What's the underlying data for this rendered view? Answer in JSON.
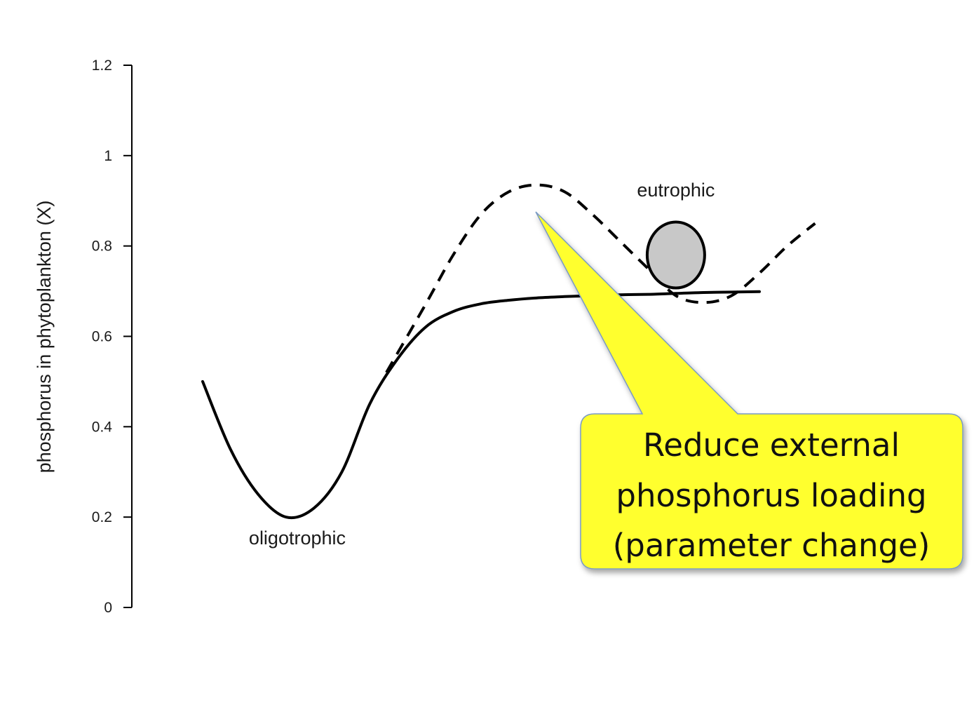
{
  "chart_data": {
    "type": "line",
    "title": "",
    "xlabel": "",
    "ylabel": "phosphorus in phytoplankton (X)",
    "ylim": [
      0,
      1.2
    ],
    "yticks": [
      {
        "value": 0,
        "label": "0"
      },
      {
        "value": 0.2,
        "label": "0.2"
      },
      {
        "value": 0.4,
        "label": "0.4"
      },
      {
        "value": 0.6,
        "label": "0.6"
      },
      {
        "value": 0.8,
        "label": "0.8"
      },
      {
        "value": 1.0,
        "label": "1"
      },
      {
        "value": 1.2,
        "label": "1.2"
      }
    ],
    "grid": false,
    "series": [
      {
        "style": "solid",
        "color": "#000000",
        "x": [
          0.0,
          0.05,
          0.1,
          0.15,
          0.2,
          0.25,
          0.3,
          0.35,
          0.4,
          0.45,
          0.5,
          0.55,
          0.6,
          0.65,
          0.7,
          0.75,
          0.8,
          0.85,
          0.9,
          0.95,
          1.0
        ],
        "y": [
          0.5,
          0.35,
          0.25,
          0.2,
          0.22,
          0.3,
          0.45,
          0.55,
          0.62,
          0.655,
          0.672,
          0.68,
          0.685,
          0.688,
          0.69,
          0.692,
          0.693,
          0.695,
          0.697,
          0.698,
          0.699
        ]
      },
      {
        "style": "dashed",
        "color": "#000000",
        "x": [
          0.33,
          0.4,
          0.45,
          0.5,
          0.55,
          0.6,
          0.65,
          0.7,
          0.75,
          0.8,
          0.85,
          0.9,
          0.95,
          1.0,
          1.05,
          1.1
        ],
        "y": [
          0.52,
          0.67,
          0.78,
          0.87,
          0.92,
          0.935,
          0.92,
          0.87,
          0.81,
          0.75,
          0.69,
          0.675,
          0.69,
          0.74,
          0.8,
          0.85
        ]
      }
    ],
    "annotations": [
      {
        "text": "oligotrophic",
        "x": 0.17,
        "y": 0.14
      },
      {
        "text": "eutrophic",
        "x": 0.85,
        "y": 0.91
      }
    ],
    "ball": {
      "x": 0.85,
      "y": 0.78,
      "fill": "#c8c8c8",
      "stroke": "#000000"
    }
  },
  "callout": {
    "lines": [
      "Reduce external",
      "phosphorus loading",
      "(parameter change)"
    ],
    "fill": "#ffff2e",
    "border": "#7a9ac4"
  }
}
